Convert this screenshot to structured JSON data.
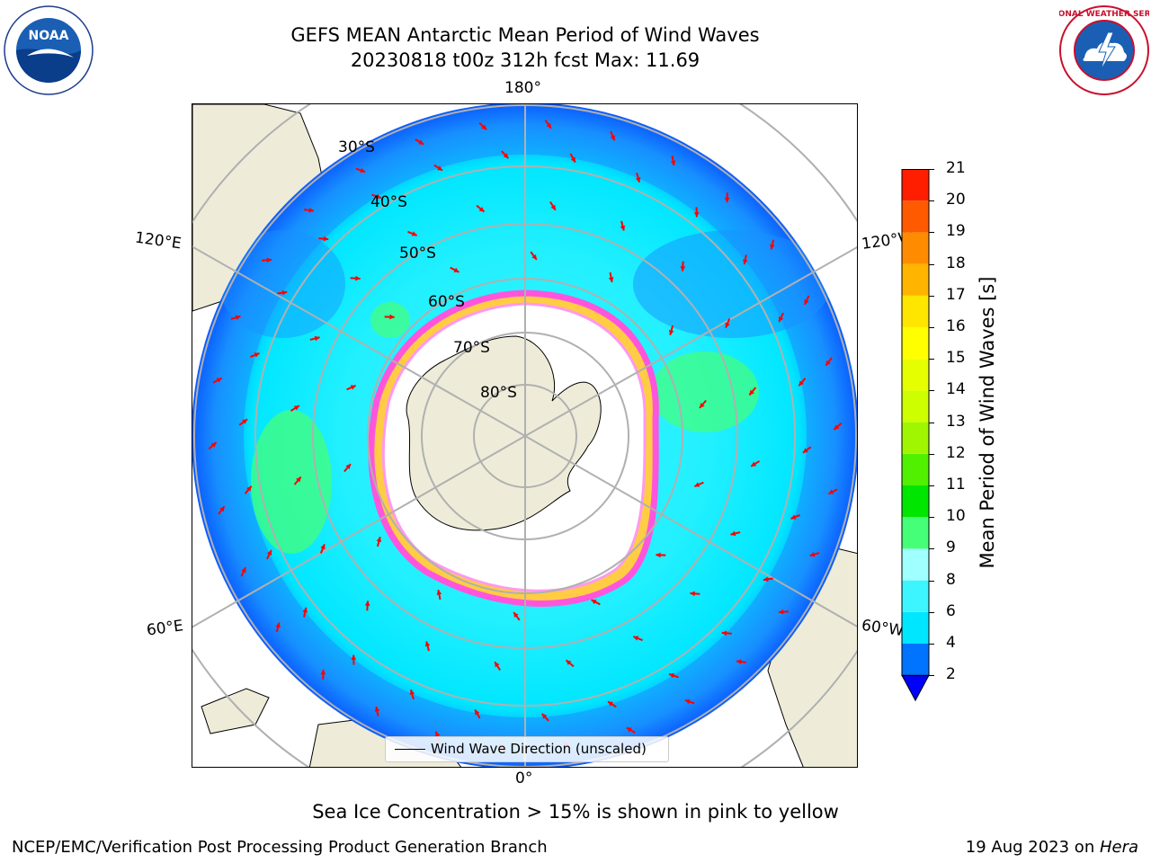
{
  "header": {
    "title_line1": "GEFS MEAN Antarctic Mean Period of Wind Waves",
    "title_line2": "20230818 t00z 312h fcst   Max: 11.69"
  },
  "logos": {
    "left_name": "NOAA",
    "left_ring_text": "NATIONAL OCEANIC AND ATMOSPHERIC ADMINISTRATION · U.S. DEPARTMENT OF COMMERCE",
    "right_ring_text": "NATIONAL WEATHER SERVICE"
  },
  "map": {
    "longitude_labels": {
      "top": "180°",
      "bottom": "0°",
      "left_upper": "120°E",
      "left_lower": "60°E",
      "right_upper": "120°W",
      "right_lower": "60°W"
    },
    "latitude_labels": [
      "30°S",
      "40°S",
      "50°S",
      "60°S",
      "70°S",
      "80°S"
    ],
    "legend_label": "Wind Wave Direction (unscaled)",
    "colors": {
      "land": "#eeecd9",
      "ice_pink": "#ff55dd",
      "ice_yellow": "#ffcc44",
      "arrow": "#ff0000",
      "grid": "#b0b0b0"
    }
  },
  "colorbar": {
    "title": "Mean Period of Wind Waves [s]",
    "ticks": [
      "2",
      "4",
      "6",
      "8",
      "9",
      "10",
      "11",
      "12",
      "13",
      "14",
      "15",
      "16",
      "17",
      "18",
      "19",
      "20",
      "21"
    ],
    "colors": [
      "#0073ff",
      "#00e6ff",
      "#3cf5ff",
      "#a0ffff",
      "#46ff78",
      "#00e600",
      "#50f000",
      "#a0f500",
      "#cdff00",
      "#e6ff00",
      "#ffff00",
      "#ffe600",
      "#ffb400",
      "#ff8c00",
      "#ff5a00",
      "#ff1e00",
      "#ff0000"
    ],
    "extend_color": "#0000ff"
  },
  "footer": {
    "note": "Sea Ice Concentration > 15% is shown in pink to yellow",
    "credit": "NCEP/EMC/Verification Post Processing Product Generation Branch",
    "date_prefix": "19 Aug 2023 on ",
    "machine": "Hera"
  }
}
